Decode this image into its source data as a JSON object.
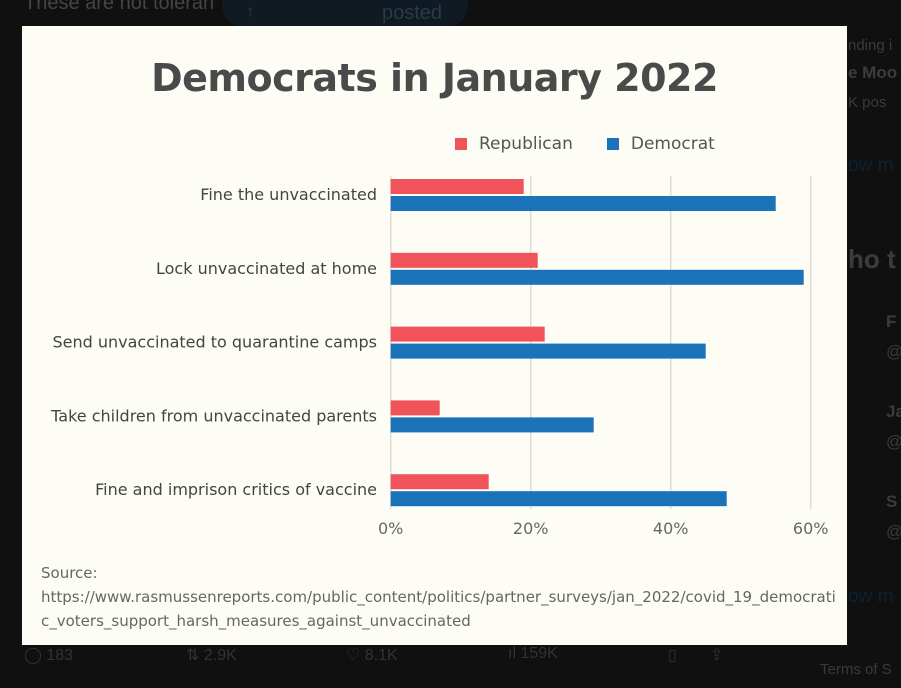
{
  "background": {
    "tweet_text": "These are not toleran",
    "posted_label": "posted",
    "trending_fragment": "nding i",
    "trend_name_fragment": "e Moo",
    "posts_fragment": "K pos",
    "show_more_1": "ow m",
    "who_to_follow_fragment": "ho t",
    "follow_names": [
      "F",
      "Ja",
      "S"
    ],
    "follow_handles": [
      "@",
      "@",
      "@"
    ],
    "show_more_2": "ow m",
    "terms": "Terms of S",
    "actions": {
      "replies": "183",
      "reposts": "2.9K",
      "likes": "8.1K",
      "views": "159K"
    }
  },
  "chart_data": {
    "type": "bar",
    "orientation": "horizontal",
    "title": "Democrats in January 2022",
    "categories": [
      "Fine the unvaccinated",
      "Lock unvaccinated at home",
      "Send unvaccinated to quarantine camps",
      "Take children from unvaccinated parents",
      "Fine and imprison critics of vaccine"
    ],
    "series": [
      {
        "name": "Republican",
        "color": "#f0535a",
        "values": [
          19,
          21,
          22,
          7,
          14
        ]
      },
      {
        "name": "Democrat",
        "color": "#1a72b9",
        "values": [
          55,
          59,
          45,
          29,
          48
        ]
      }
    ],
    "xlim": [
      0,
      60
    ],
    "xticks": [
      "0%",
      "20%",
      "40%",
      "60%"
    ],
    "xtick_values": [
      0,
      20,
      40,
      60
    ],
    "grid": true,
    "legend_position": "top-right",
    "xlabel": "",
    "ylabel": "",
    "source_label": "Source:",
    "source_url": "https://www.rasmussenreports.com/public_content/politics/partner_surveys/jan_2022/covid_19_democratic_voters_support_harsh_measures_against_unvaccinated"
  }
}
